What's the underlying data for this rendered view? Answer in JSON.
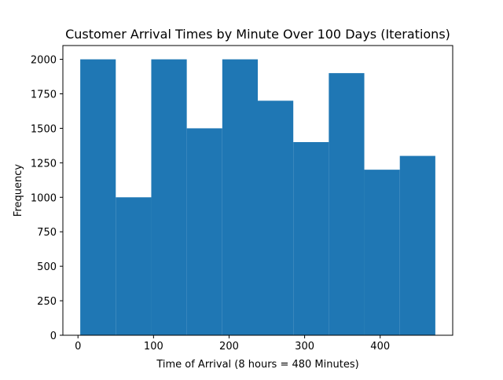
{
  "chart_data": {
    "type": "bar",
    "title": "Customer Arrival Times by Minute Over 100 Days (Iterations)",
    "xlabel": "Time of Arrival (8 hours = 480 Minutes)",
    "ylabel": "Frequency",
    "bins": [
      {
        "x0": 3,
        "x1": 50,
        "value": 2000
      },
      {
        "x0": 50,
        "x1": 97,
        "value": 1000
      },
      {
        "x0": 97,
        "x1": 144,
        "value": 2000
      },
      {
        "x0": 144,
        "x1": 191,
        "value": 1500
      },
      {
        "x0": 191,
        "x1": 238,
        "value": 2000
      },
      {
        "x0": 238,
        "x1": 285,
        "value": 1700
      },
      {
        "x0": 285,
        "x1": 332,
        "value": 1400
      },
      {
        "x0": 332,
        "x1": 379,
        "value": 1900
      },
      {
        "x0": 379,
        "x1": 426,
        "value": 1200
      },
      {
        "x0": 426,
        "x1": 473,
        "value": 1300
      }
    ],
    "xlim": [
      -20,
      496
    ],
    "ylim": [
      0,
      2100
    ],
    "xticks": [
      0,
      100,
      200,
      300,
      400
    ],
    "xtick_labels": [
      "0",
      "100",
      "200",
      "300",
      "400"
    ],
    "yticks": [
      0,
      250,
      500,
      750,
      1000,
      1250,
      1500,
      1750,
      2000
    ],
    "ytick_labels": [
      "0",
      "250",
      "500",
      "750",
      "1000",
      "1250",
      "1500",
      "1750",
      "2000"
    ],
    "bar_color": "#1f77b4",
    "grid": false,
    "legend": false
  }
}
